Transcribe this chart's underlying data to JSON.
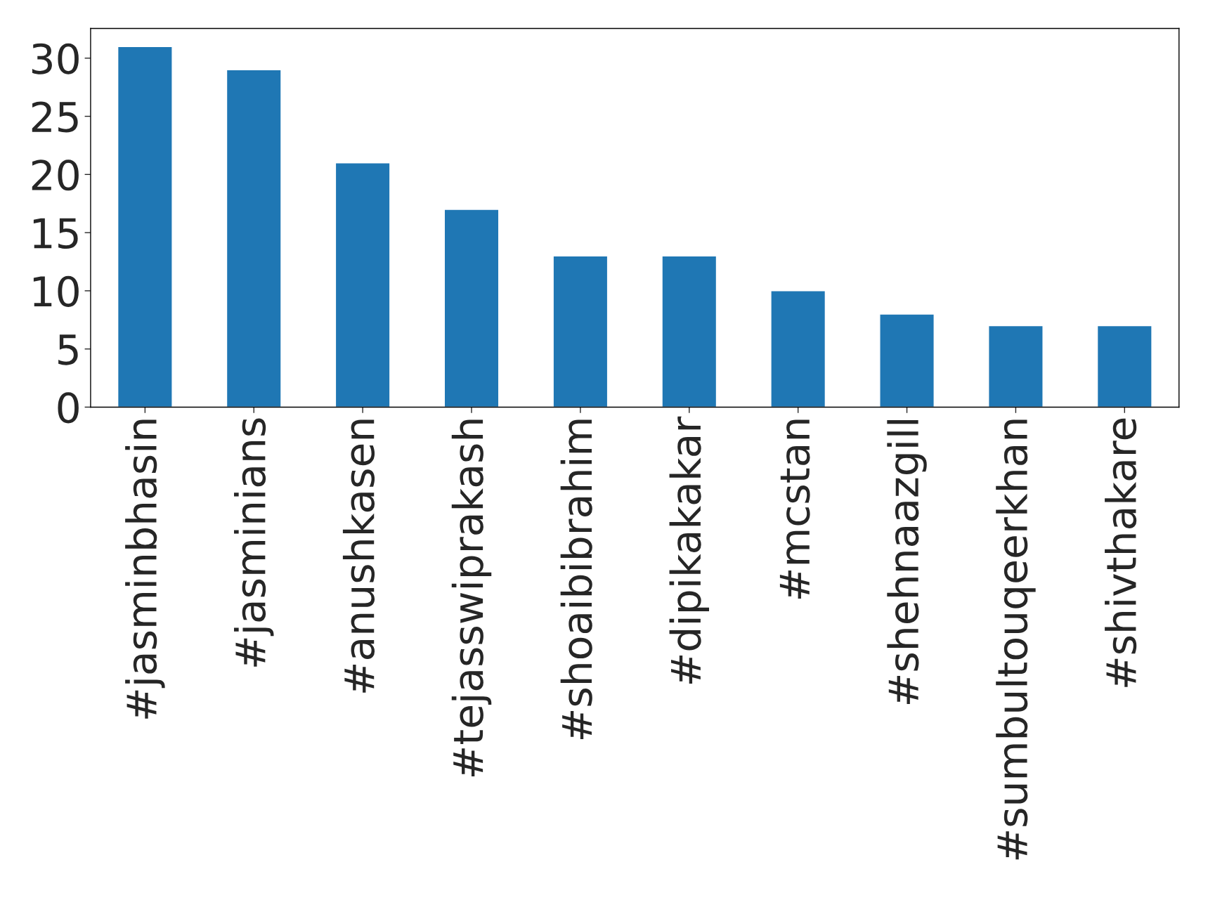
{
  "chart_data": {
    "type": "bar",
    "categories": [
      "#jasminbhasin",
      "#jasminians",
      "#anushkasen",
      "#tejasswiprakash",
      "#shoaibibrahim",
      "#dipikakakar",
      "#mcstan",
      "#shehnaazgill",
      "#sumbultouqeerkhan",
      "#shivthakare"
    ],
    "values": [
      31,
      29,
      21,
      17,
      13,
      13,
      10,
      8,
      7,
      7
    ],
    "color": "#1f77b4",
    "ylim": [
      0,
      32.55
    ],
    "yticks": [
      0,
      5,
      10,
      15,
      20,
      25,
      30
    ],
    "grid": false,
    "legend": false
  }
}
